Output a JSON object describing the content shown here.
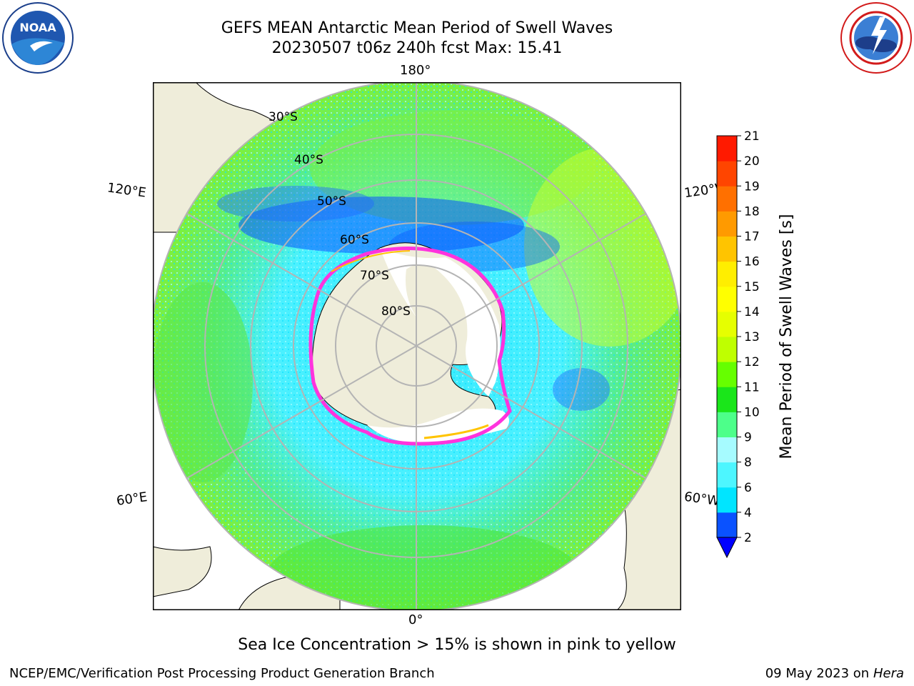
{
  "header": {
    "title_line1": "GEFS MEAN Antarctic Mean Period of Swell Waves",
    "title_line2": "20230507 t06z 240h fcst   Max: 15.41"
  },
  "logos": {
    "left": "NOAA",
    "right": "NATIONAL WEATHER SERVICE"
  },
  "map": {
    "projection": "south-polar-stereographic",
    "longitude_labels": [
      "180°",
      "120°E",
      "120°W",
      "60°E",
      "60°W",
      "0°"
    ],
    "latitude_labels": [
      "30°S",
      "40°S",
      "50°S",
      "60°S",
      "70°S",
      "80°S"
    ],
    "colors": {
      "land": "#efedda",
      "ice_shelf": "#ffffff",
      "grid": "#b4b4b4",
      "sea_ice_edge": "#ff33dd"
    }
  },
  "colorbar": {
    "label": "Mean Period of Swell Waves [s]",
    "ticks": [
      "2",
      "4",
      "6",
      "8",
      "9",
      "10",
      "11",
      "12",
      "13",
      "14",
      "15",
      "16",
      "17",
      "18",
      "19",
      "20",
      "21"
    ],
    "colors": [
      "#0a52ff",
      "#00e5ff",
      "#4df6ff",
      "#a6fbff",
      "#4dff8a",
      "#1ae61a",
      "#66ff00",
      "#bfff00",
      "#e6ff00",
      "#ffff00",
      "#ffee00",
      "#ffc400",
      "#ff9a00",
      "#ff7000",
      "#ff4500",
      "#ff1a00"
    ],
    "under_color": "#0000ff"
  },
  "notes": {
    "sea_ice": "Sea Ice Concentration > 15% is shown in pink to yellow"
  },
  "footer": {
    "left": "NCEP/EMC/Verification Post Processing Product Generation Branch",
    "date": "09 May 2023 on",
    "host": "Hera"
  }
}
